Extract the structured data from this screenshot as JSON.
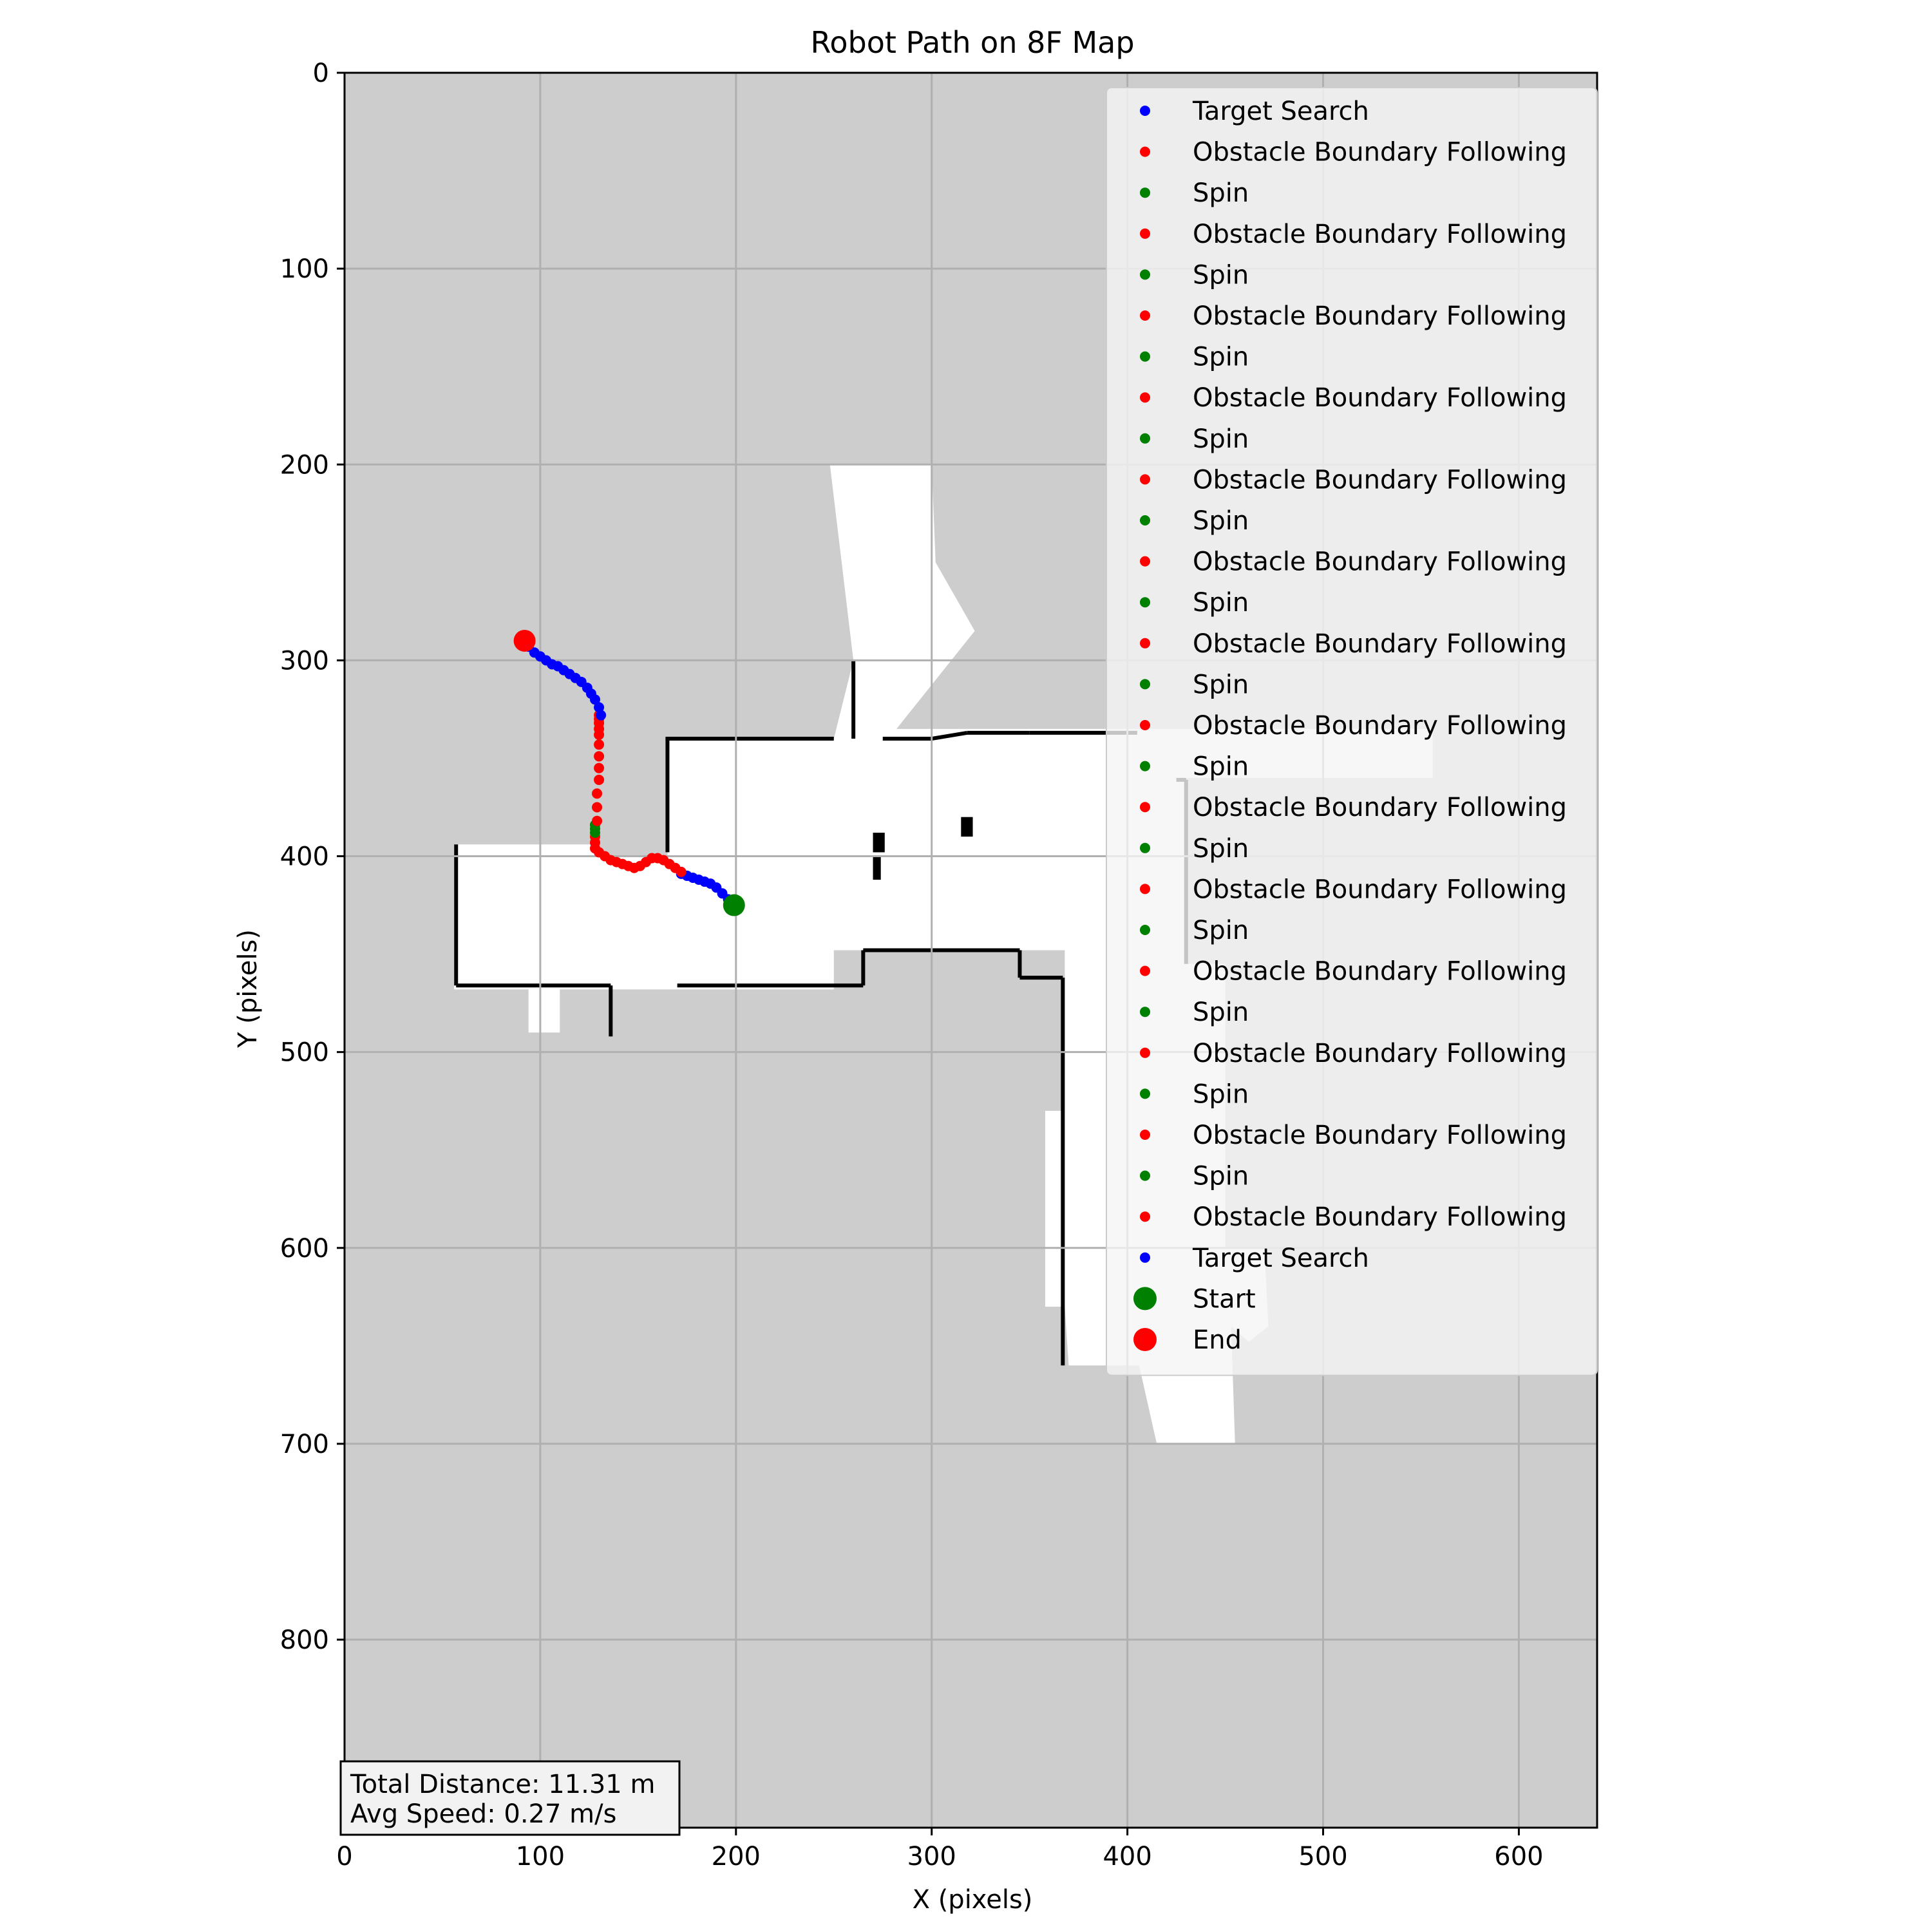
{
  "chart_data": {
    "type": "scatter",
    "title": "Robot Path on 8F Map",
    "xlabel": "X (pixels)",
    "ylabel": "Y (pixels)",
    "xlim": [
      0,
      640
    ],
    "ylim": [
      896,
      0
    ],
    "y_axis_inverted": true,
    "grid": true,
    "x_ticks": [
      0,
      100,
      200,
      300,
      400,
      500,
      600
    ],
    "y_ticks": [
      0,
      100,
      200,
      300,
      400,
      500,
      600,
      700,
      800
    ],
    "legend_position": "top-right",
    "background_color": "#cdcdcd",
    "free_space_color": "#ffffff",
    "obstacle_color": "#000000",
    "colors": {
      "Target Search": "#0000ff",
      "Obstacle Boundary Following": "#ff0000",
      "Spin": "#008000",
      "Start": "#008000",
      "End": "#ff0000"
    },
    "legend": [
      {
        "label": "Target Search",
        "color": "#0000ff",
        "marker": "small"
      },
      {
        "label": "Obstacle Boundary Following",
        "color": "#ff0000",
        "marker": "small"
      },
      {
        "label": "Spin",
        "color": "#008000",
        "marker": "small"
      },
      {
        "label": "Obstacle Boundary Following",
        "color": "#ff0000",
        "marker": "small"
      },
      {
        "label": "Spin",
        "color": "#008000",
        "marker": "small"
      },
      {
        "label": "Obstacle Boundary Following",
        "color": "#ff0000",
        "marker": "small"
      },
      {
        "label": "Spin",
        "color": "#008000",
        "marker": "small"
      },
      {
        "label": "Obstacle Boundary Following",
        "color": "#ff0000",
        "marker": "small"
      },
      {
        "label": "Spin",
        "color": "#008000",
        "marker": "small"
      },
      {
        "label": "Obstacle Boundary Following",
        "color": "#ff0000",
        "marker": "small"
      },
      {
        "label": "Spin",
        "color": "#008000",
        "marker": "small"
      },
      {
        "label": "Obstacle Boundary Following",
        "color": "#ff0000",
        "marker": "small"
      },
      {
        "label": "Spin",
        "color": "#008000",
        "marker": "small"
      },
      {
        "label": "Obstacle Boundary Following",
        "color": "#ff0000",
        "marker": "small"
      },
      {
        "label": "Spin",
        "color": "#008000",
        "marker": "small"
      },
      {
        "label": "Obstacle Boundary Following",
        "color": "#ff0000",
        "marker": "small"
      },
      {
        "label": "Spin",
        "color": "#008000",
        "marker": "small"
      },
      {
        "label": "Obstacle Boundary Following",
        "color": "#ff0000",
        "marker": "small"
      },
      {
        "label": "Spin",
        "color": "#008000",
        "marker": "small"
      },
      {
        "label": "Obstacle Boundary Following",
        "color": "#ff0000",
        "marker": "small"
      },
      {
        "label": "Spin",
        "color": "#008000",
        "marker": "small"
      },
      {
        "label": "Obstacle Boundary Following",
        "color": "#ff0000",
        "marker": "small"
      },
      {
        "label": "Spin",
        "color": "#008000",
        "marker": "small"
      },
      {
        "label": "Obstacle Boundary Following",
        "color": "#ff0000",
        "marker": "small"
      },
      {
        "label": "Spin",
        "color": "#008000",
        "marker": "small"
      },
      {
        "label": "Obstacle Boundary Following",
        "color": "#ff0000",
        "marker": "small"
      },
      {
        "label": "Spin",
        "color": "#008000",
        "marker": "small"
      },
      {
        "label": "Obstacle Boundary Following",
        "color": "#ff0000",
        "marker": "small"
      },
      {
        "label": "Target Search",
        "color": "#0000ff",
        "marker": "small"
      },
      {
        "label": "Start",
        "color": "#008000",
        "marker": "large"
      },
      {
        "label": "End",
        "color": "#ff0000",
        "marker": "large"
      }
    ],
    "series": [
      {
        "name": "Target Search",
        "color": "#0000ff",
        "x": [
          199,
          196,
          193,
          190,
          187,
          184,
          181,
          178,
          175,
          172
        ],
        "y": [
          425,
          422,
          419,
          416,
          414,
          413,
          412,
          411,
          410,
          409
        ]
      },
      {
        "name": "Obstacle Boundary Following",
        "color": "#ff0000",
        "x": [
          172,
          169,
          166,
          163,
          160,
          157,
          154,
          151,
          148,
          145,
          142,
          139,
          136,
          133,
          130,
          128,
          128,
          128
        ],
        "y": [
          408,
          406,
          404,
          402,
          401,
          401,
          403,
          405,
          406,
          405,
          404,
          403,
          402,
          400,
          398,
          396,
          393,
          390
        ]
      },
      {
        "name": "Spin",
        "color": "#008000",
        "x": [
          128,
          128,
          128
        ],
        "y": [
          388,
          386,
          384
        ]
      },
      {
        "name": "Obstacle Boundary Following",
        "color": "#ff0000",
        "x": [
          129,
          129,
          129,
          130,
          130,
          130,
          130,
          130,
          130,
          130,
          130,
          130
        ],
        "y": [
          382,
          375,
          368,
          361,
          355,
          349,
          343,
          338,
          335,
          332,
          330,
          328
        ]
      },
      {
        "name": "Target Search",
        "color": "#0000ff",
        "x": [
          131,
          130,
          128,
          126,
          124,
          121,
          118,
          115,
          112,
          109,
          106,
          103,
          100,
          97,
          94
        ],
        "y": [
          328,
          324,
          320,
          317,
          314,
          311,
          309,
          307,
          305,
          303,
          302,
          300,
          298,
          296,
          293
        ]
      }
    ],
    "start": {
      "x": 199,
      "y": 425
    },
    "end": {
      "x": 92,
      "y": 290
    },
    "map_free_regions": [
      [
        [
          56,
          394
        ],
        [
          130,
          394
        ],
        [
          130,
          400
        ],
        [
          165,
          400
        ],
        [
          165,
          340
        ],
        [
          250,
          340
        ],
        [
          260,
          300
        ],
        [
          248,
          200
        ],
        [
          300,
          200
        ],
        [
          302,
          250
        ],
        [
          322,
          285
        ],
        [
          282,
          335
        ],
        [
          556,
          335
        ],
        [
          556,
          360
        ],
        [
          430,
          360
        ],
        [
          430,
          455
        ],
        [
          450,
          455
        ],
        [
          450,
          600
        ],
        [
          470,
          600
        ],
        [
          472,
          640
        ],
        [
          462,
          648
        ],
        [
          453,
          640
        ],
        [
          455,
          700
        ],
        [
          415,
          700
        ],
        [
          406,
          660
        ],
        [
          370,
          660
        ],
        [
          368,
          630
        ],
        [
          358,
          630
        ],
        [
          358,
          530
        ],
        [
          368,
          530
        ],
        [
          368,
          448
        ],
        [
          250,
          448
        ],
        [
          250,
          468
        ],
        [
          110,
          468
        ],
        [
          110,
          490
        ],
        [
          94,
          490
        ],
        [
          94,
          468
        ],
        [
          56,
          468
        ]
      ]
    ],
    "map_obstacle_boundaries": [
      [
        [
          164,
          340
        ],
        [
          250,
          340
        ]
      ],
      [
        [
          165,
          340
        ],
        [
          165,
          398
        ]
      ],
      [
        [
          57,
          394
        ],
        [
          57,
          466
        ]
      ],
      [
        [
          57,
          466
        ],
        [
          136,
          466
        ]
      ],
      [
        [
          136,
          466
        ],
        [
          136,
          492
        ]
      ],
      [
        [
          170,
          466
        ],
        [
          265,
          466
        ]
      ],
      [
        [
          265,
          448
        ],
        [
          265,
          466
        ]
      ],
      [
        [
          265,
          448
        ],
        [
          345,
          448
        ]
      ],
      [
        [
          345,
          448
        ],
        [
          345,
          462
        ]
      ],
      [
        [
          345,
          462
        ],
        [
          367,
          462
        ]
      ],
      [
        [
          367,
          462
        ],
        [
          367,
          660
        ]
      ],
      [
        [
          275,
          340
        ],
        [
          300,
          340
        ]
      ],
      [
        [
          300,
          340
        ],
        [
          318,
          337
        ]
      ],
      [
        [
          318,
          337
        ],
        [
          350,
          337
        ]
      ],
      [
        [
          350,
          337
        ],
        [
          405,
          337
        ]
      ],
      [
        [
          425,
          361
        ],
        [
          430,
          361
        ]
      ],
      [
        [
          430,
          361
        ],
        [
          430,
          455
        ]
      ],
      [
        [
          260,
          300
        ],
        [
          260,
          340
        ]
      ]
    ],
    "map_obstacle_blocks": [
      [
        [
          270,
          388
        ],
        [
          276,
          398
        ]
      ],
      [
        [
          270,
          400
        ],
        [
          274,
          412
        ]
      ],
      [
        [
          315,
          380
        ],
        [
          321,
          390
        ]
      ]
    ],
    "stats": {
      "total_distance": "Total Distance: 11.31 m",
      "avg_speed": "Avg Speed: 0.27 m/s"
    }
  }
}
